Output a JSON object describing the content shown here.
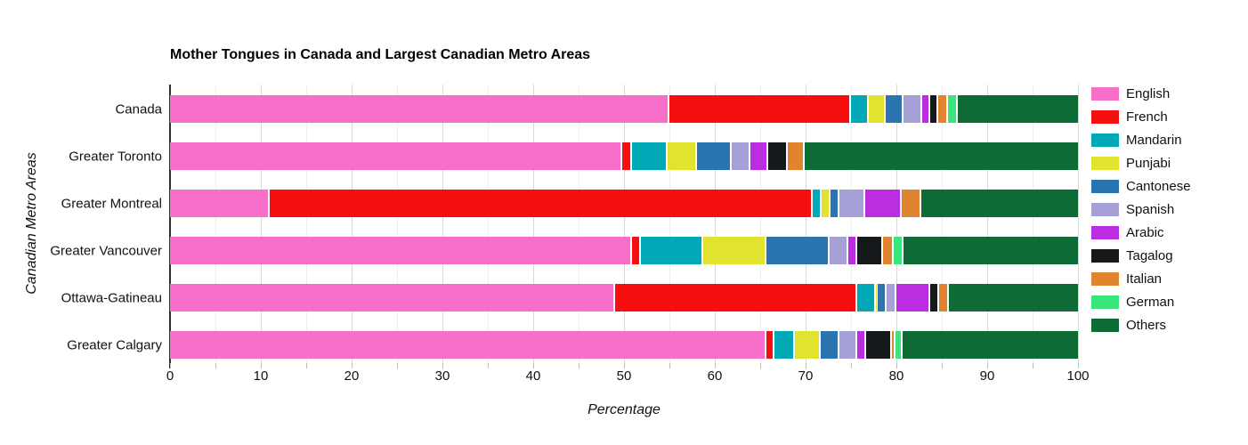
{
  "title": "Mother Tongues in Canada and Largest Canadian Metro Areas",
  "chart_data": {
    "type": "bar",
    "orientation": "horizontal",
    "stacked": true,
    "title": "Mother Tongues in Canada and Largest Canadian Metro Areas",
    "xlabel": "Percentage",
    "ylabel": "Canadian Metro Areas",
    "xlim": [
      0,
      100
    ],
    "x_tick_step_labeled": 10,
    "grid_step_minor": 5,
    "grid": true,
    "legend_position": "right",
    "categories": [
      "Canada",
      "Greater Toronto",
      "Greater Montreal",
      "Greater Vancouver",
      "Ottawa-Gatineau",
      "Greater Calgary"
    ],
    "series": [
      {
        "name": "English",
        "color": "#f86fc9",
        "values": [
          55.0,
          49.8,
          11.0,
          50.9,
          49.0,
          65.7
        ]
      },
      {
        "name": "French",
        "color": "#f50f0f",
        "values": [
          20.0,
          1.1,
          59.8,
          1.0,
          26.7,
          0.9
        ]
      },
      {
        "name": "Mandarin",
        "color": "#00a9b5",
        "values": [
          2.0,
          3.9,
          1.0,
          6.8,
          2.0,
          2.2
        ]
      },
      {
        "name": "Punjabi",
        "color": "#e1e42e",
        "values": [
          1.8,
          3.2,
          0.9,
          7.0,
          0.2,
          2.9
        ]
      },
      {
        "name": "Cantonese",
        "color": "#2a74b0",
        "values": [
          2.0,
          3.9,
          1.0,
          6.9,
          1.0,
          2.0
        ]
      },
      {
        "name": "Spanish",
        "color": "#a5a0d6",
        "values": [
          2.0,
          2.0,
          2.9,
          2.1,
          1.1,
          2.0
        ]
      },
      {
        "name": "Arabic",
        "color": "#bb2de0",
        "values": [
          0.9,
          2.0,
          4.0,
          1.0,
          3.7,
          1.0
        ]
      },
      {
        "name": "Tagalog",
        "color": "#15191c",
        "values": [
          0.9,
          2.1,
          0,
          2.8,
          1.0,
          2.8
        ]
      },
      {
        "name": "Italian",
        "color": "#e08430",
        "values": [
          1.1,
          1.9,
          2.1,
          1.2,
          1.1,
          0.4
        ]
      },
      {
        "name": "German",
        "color": "#39e57c",
        "values": [
          1.1,
          0,
          0,
          1.1,
          0,
          0.8
        ]
      },
      {
        "name": "Others",
        "color": "#0e6b35",
        "values": [
          13.2,
          30.1,
          17.3,
          19.2,
          14.2,
          19.3
        ]
      }
    ]
  }
}
